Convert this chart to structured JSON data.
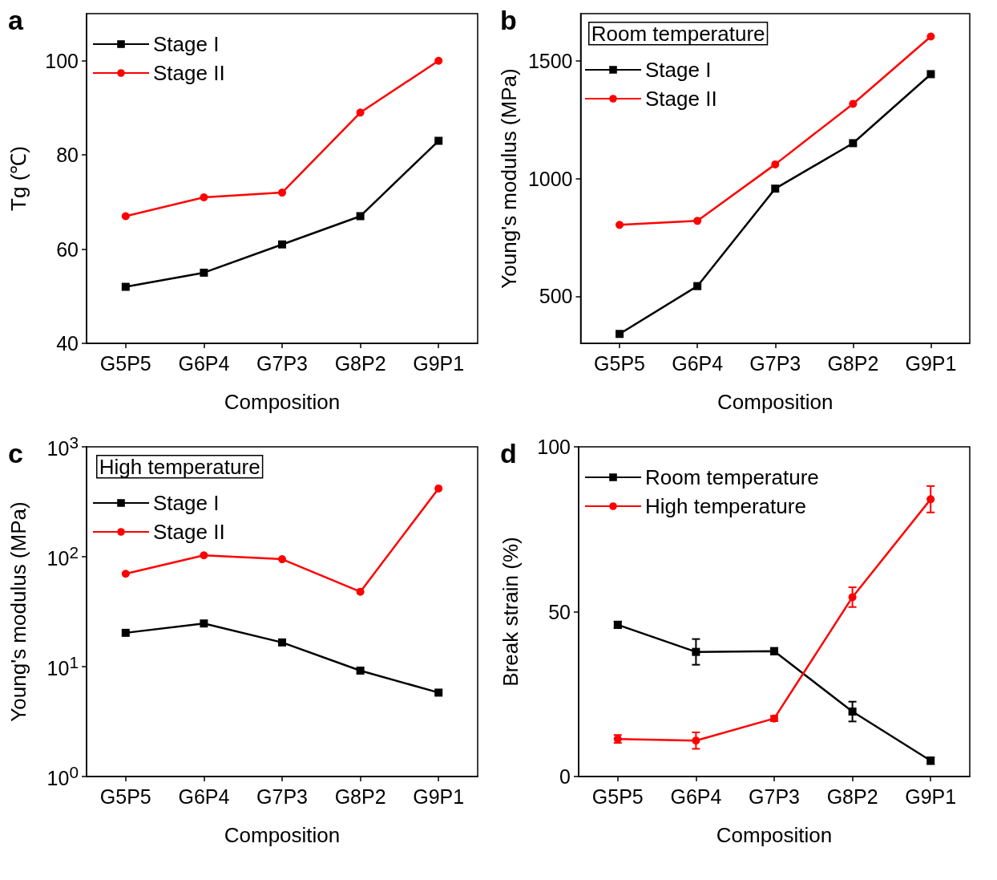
{
  "chart_data": [
    {
      "type": "line",
      "annotations": [
        "a"
      ],
      "xlabel": "Composition",
      "ylabel": "Tg (℃)",
      "categories": [
        "G5P5",
        "G6P4",
        "G7P3",
        "G8P2",
        "G9P1"
      ],
      "ylim": [
        40,
        110
      ],
      "yticks": [
        40,
        60,
        80,
        100
      ],
      "grid": false,
      "legend": "top left",
      "line_style": "solid",
      "series": [
        {
          "name": "Stage I",
          "color": "#000000",
          "marker": "square",
          "values": [
            52,
            55,
            61,
            67,
            83
          ]
        },
        {
          "name": "Stage II",
          "color": "#ff0000",
          "marker": "circle",
          "values": [
            67,
            71,
            72,
            89,
            100
          ]
        }
      ]
    },
    {
      "type": "line",
      "annotations": [
        "b"
      ],
      "xlabel": "Composition",
      "ylabel": "Young's modulus (MPa)",
      "legend_title": "Room temperature",
      "categories": [
        "G5P5",
        "G6P4",
        "G7P3",
        "G8P2",
        "G9P1"
      ],
      "ylim": [
        300,
        1700
      ],
      "yticks": [
        500,
        1000,
        1500
      ],
      "grid": false,
      "legend": "top left",
      "line_style": "solid",
      "series": [
        {
          "name": "Stage I",
          "color": "#000000",
          "marker": "square",
          "values": [
            340,
            543,
            957,
            1150,
            1443
          ]
        },
        {
          "name": "Stage II",
          "color": "#ff0000",
          "marker": "circle",
          "values": [
            803,
            820,
            1060,
            1317,
            1603
          ]
        }
      ]
    },
    {
      "type": "line",
      "annotations": [
        "c"
      ],
      "xlabel": "Composition",
      "ylabel": "Young's modulus (MPa)",
      "legend_title": "High temperature",
      "categories": [
        "G5P5",
        "G6P4",
        "G7P3",
        "G8P2",
        "G9P1"
      ],
      "log": "y",
      "ylim": [
        1,
        1000
      ],
      "yticks": [
        {
          "value": 1,
          "label": "10$^{0}$"
        },
        {
          "value": 10,
          "label": "10$^{1}$"
        },
        {
          "value": 100,
          "label": "10$^{2}$"
        },
        {
          "value": 1000,
          "label": "10$^{3}$"
        }
      ],
      "grid": false,
      "legend": "top left",
      "line_style": "solid",
      "series": [
        {
          "name": "Stage I",
          "color": "#000000",
          "marker": "square",
          "values": [
            20.3,
            24.7,
            16.6,
            9.2,
            5.8
          ]
        },
        {
          "name": "Stage II",
          "color": "#ff0000",
          "marker": "circle",
          "values": [
            70,
            103,
            95,
            48,
            418
          ]
        }
      ]
    },
    {
      "type": "line",
      "annotations": [
        "d"
      ],
      "xlabel": "Composition",
      "ylabel": "Break strain (%)",
      "categories": [
        "G5P5",
        "G6P4",
        "G7P3",
        "G8P2",
        "G9P1"
      ],
      "ylim": [
        0,
        100
      ],
      "yticks": [
        0,
        50,
        100
      ],
      "grid": false,
      "legend": "top left",
      "line_style": "solid",
      "series": [
        {
          "name": "Room temperature",
          "color": "#000000",
          "marker": "square",
          "values": [
            46,
            37.8,
            38,
            19.7,
            4.8
          ],
          "errors": [
            1,
            3.9,
            1,
            3,
            1
          ]
        },
        {
          "name": "High temperature",
          "color": "#ff0000",
          "marker": "circle",
          "values": [
            11.4,
            10.9,
            17.6,
            54.4,
            84.1
          ],
          "errors": [
            1.2,
            2.5,
            0.8,
            3,
            4
          ]
        }
      ]
    }
  ]
}
